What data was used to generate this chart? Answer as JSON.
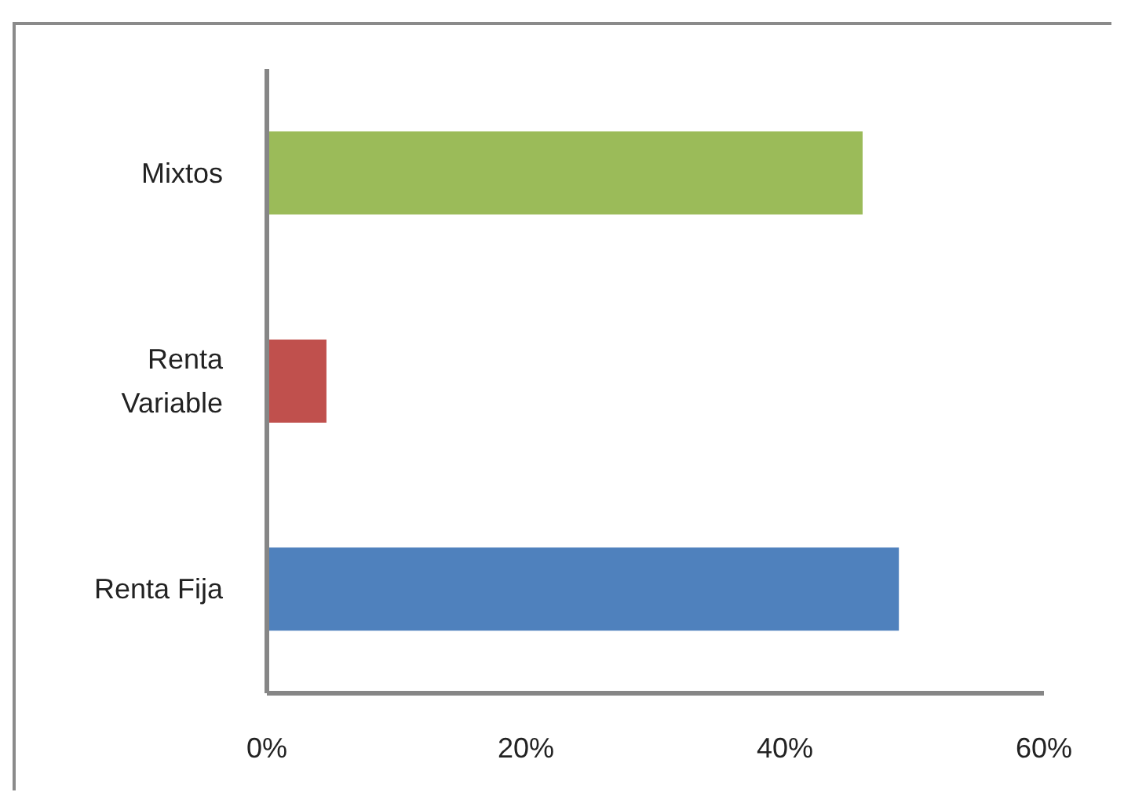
{
  "chart_data": {
    "type": "bar",
    "orientation": "horizontal",
    "categories": [
      "Mixtos",
      "Renta Variable",
      "Renta Fija"
    ],
    "values": [
      46,
      4.6,
      48.8
    ],
    "colors": [
      "#9bbb59",
      "#c0504d",
      "#4f81bd"
    ],
    "xlim": [
      0,
      60
    ],
    "xticks": [
      {
        "value": 0,
        "label": "0%"
      },
      {
        "value": 20,
        "label": "20%"
      },
      {
        "value": 40,
        "label": "40%"
      },
      {
        "value": 60,
        "label": "60%"
      }
    ]
  }
}
